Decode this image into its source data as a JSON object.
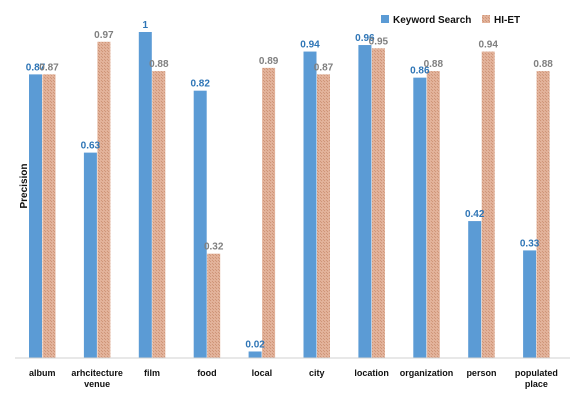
{
  "chart_data": {
    "type": "bar",
    "title": "",
    "xlabel": "",
    "ylabel": "Precision",
    "ylim": [
      0,
      1
    ],
    "grid": false,
    "legend_position": "top-right",
    "categories": [
      [
        "album"
      ],
      [
        "arhcitecture",
        "venue"
      ],
      [
        "film"
      ],
      [
        "food"
      ],
      [
        "local"
      ],
      [
        "city"
      ],
      [
        "location"
      ],
      [
        "organization"
      ],
      [
        "person"
      ],
      [
        "populated",
        "place"
      ]
    ],
    "series": [
      {
        "name": "Keyword Search",
        "color": "#5b9bd5",
        "label_color": "#2e75b6",
        "values": [
          0.87,
          0.63,
          1,
          0.82,
          0.02,
          0.94,
          0.96,
          0.86,
          0.42,
          0.33
        ],
        "labels": [
          "0.87",
          "0.63",
          "1",
          "0.82",
          "0.02",
          "0.94",
          "0.96",
          "0.86",
          "0.42",
          "0.33"
        ]
      },
      {
        "name": "HI-ET",
        "color": "#e2b29a",
        "label_color": "#7f7f7f",
        "values": [
          0.87,
          0.97,
          0.88,
          0.32,
          0.89,
          0.87,
          0.95,
          0.88,
          0.94,
          0.88
        ],
        "labels": [
          "0.87",
          "0.97",
          "0.88",
          "0.32",
          "0.89",
          "0.87",
          "0.95",
          "0.88",
          "0.94",
          "0.88"
        ]
      }
    ]
  }
}
